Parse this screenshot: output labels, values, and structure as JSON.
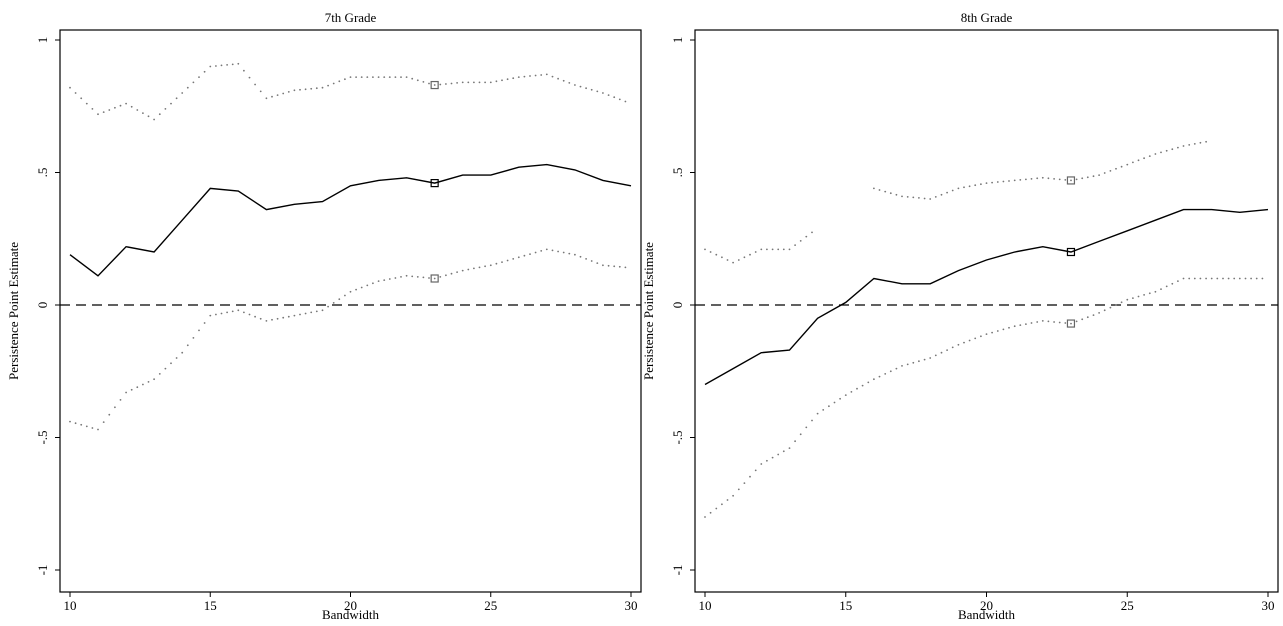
{
  "chart_data": [
    {
      "type": "line",
      "title": "7th Grade",
      "xlabel": "Bandwidth",
      "ylabel": "Persistence Point Estimate",
      "xlim": [
        10,
        30
      ],
      "ylim": [
        -1,
        1
      ],
      "xticks": [
        10,
        15,
        20,
        25,
        30
      ],
      "yticks": [
        -1,
        -0.5,
        0,
        0.5,
        1
      ],
      "ytick_labels": [
        "-1",
        "-.5",
        "0",
        ".5",
        "1"
      ],
      "reference_line": 0,
      "series": [
        {
          "style": "solid",
          "x": [
            10,
            11,
            12,
            13,
            14,
            15,
            16,
            17,
            18,
            19,
            20,
            21,
            22,
            23,
            24,
            25,
            26,
            27,
            28,
            29,
            30
          ],
          "values": [
            0.19,
            0.11,
            0.22,
            0.2,
            0.32,
            0.44,
            0.43,
            0.36,
            0.38,
            0.39,
            0.45,
            0.47,
            0.48,
            0.46,
            0.49,
            0.49,
            0.52,
            0.53,
            0.51,
            0.47,
            0.45
          ]
        },
        {
          "style": "dotted",
          "x": [
            10,
            11,
            12,
            13,
            14,
            15,
            16,
            17,
            18,
            19,
            20,
            21,
            22,
            23,
            24,
            25,
            26,
            27,
            28,
            29,
            30
          ],
          "values": [
            0.82,
            0.72,
            0.76,
            0.7,
            0.8,
            0.9,
            0.91,
            0.78,
            0.81,
            0.82,
            0.86,
            0.86,
            0.86,
            0.83,
            0.84,
            0.84,
            0.86,
            0.87,
            0.83,
            0.8,
            0.76
          ]
        },
        {
          "style": "dotted",
          "x": [
            10,
            11,
            12,
            13,
            14,
            15,
            16,
            17,
            18,
            19,
            20,
            21,
            22,
            23,
            24,
            25,
            26,
            27,
            28,
            29,
            30
          ],
          "values": [
            -0.44,
            -0.47,
            -0.33,
            -0.28,
            -0.18,
            -0.04,
            -0.02,
            -0.06,
            -0.04,
            -0.02,
            0.05,
            0.09,
            0.11,
            0.1,
            0.13,
            0.15,
            0.18,
            0.21,
            0.19,
            0.15,
            0.14
          ]
        }
      ],
      "highlight": {
        "x": 23,
        "values": [
          0.46,
          0.83,
          0.1
        ]
      }
    },
    {
      "type": "line",
      "title": "8th Grade",
      "xlabel": "Bandwidth",
      "ylabel": "Persistence Point Estimate",
      "xlim": [
        10,
        30
      ],
      "ylim": [
        -1,
        1
      ],
      "xticks": [
        10,
        15,
        20,
        25,
        30
      ],
      "yticks": [
        -1,
        -0.5,
        0,
        0.5,
        1
      ],
      "ytick_labels": [
        "-1",
        "-.5",
        "0",
        ".5",
        "1"
      ],
      "reference_line": 0,
      "series": [
        {
          "style": "solid",
          "x": [
            10,
            11,
            12,
            13,
            14,
            15,
            16,
            17,
            18,
            19,
            20,
            21,
            22,
            23,
            24,
            25,
            26,
            27,
            28,
            29,
            30
          ],
          "values": [
            -0.3,
            -0.24,
            -0.18,
            -0.17,
            -0.05,
            0.01,
            0.1,
            0.08,
            0.08,
            0.13,
            0.17,
            0.2,
            0.22,
            0.2,
            0.24,
            0.28,
            0.32,
            0.36,
            0.36,
            0.35,
            0.36
          ]
        },
        {
          "style": "dotted",
          "x": [
            10,
            11,
            12,
            13,
            14,
            15,
            16,
            17,
            18,
            19,
            20,
            21,
            22,
            23,
            24,
            25,
            26,
            27,
            28,
            29,
            30
          ],
          "values": [
            0.21,
            0.16,
            0.21,
            0.21,
            0.29,
            null,
            0.44,
            0.41,
            0.4,
            0.44,
            0.46,
            0.47,
            0.48,
            0.47,
            0.49,
            0.53,
            0.57,
            0.6,
            0.62,
            null,
            null
          ]
        },
        {
          "style": "dotted",
          "x": [
            10,
            11,
            12,
            13,
            14,
            15,
            16,
            17,
            18,
            19,
            20,
            21,
            22,
            23,
            24,
            25,
            26,
            27,
            28,
            29,
            30
          ],
          "values": [
            -0.8,
            -0.72,
            -0.6,
            -0.54,
            -0.41,
            -0.34,
            -0.28,
            -0.23,
            -0.2,
            -0.15,
            -0.11,
            -0.08,
            -0.06,
            -0.07,
            -0.03,
            0.02,
            0.05,
            0.1,
            0.1,
            0.1,
            0.1
          ]
        }
      ],
      "highlight": {
        "x": 23,
        "values": [
          0.2,
          0.47,
          -0.07
        ]
      }
    }
  ]
}
